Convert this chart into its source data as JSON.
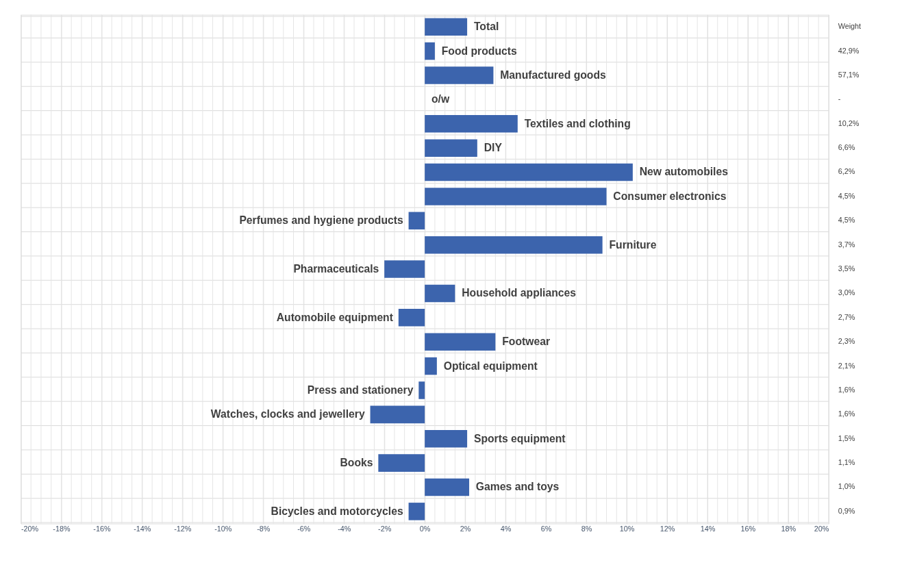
{
  "chart_data": {
    "type": "bar",
    "orientation": "horizontal",
    "color": "#3c64ad",
    "grid": true,
    "tick_labels": "x",
    "categories": [
      "Total",
      "Food products",
      "Manufactured  goods",
      "o/w",
      "Textiles and clothing",
      "DIY",
      "New automobiles",
      "Consumer electronics",
      "Perfumes and hygiene products",
      "Furniture",
      "Pharmaceuticals",
      "Household appliances",
      "Automobile equipment",
      "Footwear",
      "Optical equipment",
      "Press and stationery",
      "Watches, clocks and jewellery",
      "Sports equipment",
      "Books",
      "Games and toys",
      "Bicycles and motorcycles"
    ],
    "values": [
      2.1,
      0.5,
      3.4,
      null,
      4.6,
      2.6,
      10.3,
      9.0,
      -0.8,
      8.8,
      -2.0,
      1.5,
      -1.3,
      3.5,
      0.6,
      -0.3,
      -2.7,
      2.1,
      -2.3,
      2.2,
      -0.8
    ],
    "y2_categories": [
      "Weight",
      "42,9%",
      "57,1%",
      "-",
      "10,2%",
      "6,6%",
      "6,2%",
      "4,5%",
      "4,5%",
      "3,7%",
      "3,5%",
      "3,0%",
      "2,7%",
      "2,3%",
      "2,1%",
      "1,6%",
      "1,6%",
      "1,5%",
      "1,1%",
      "1,0%",
      "0,9%"
    ],
    "xlim": [
      -20,
      20
    ],
    "xticks": [
      {
        "value": -20,
        "label": "-20%"
      },
      {
        "value": -19.5,
        "label": null
      },
      {
        "value": -19,
        "label": null
      },
      {
        "value": -18.5,
        "label": null
      },
      {
        "value": -18,
        "label": "-18%"
      },
      {
        "value": -17.5,
        "label": null
      },
      {
        "value": -17,
        "label": null
      },
      {
        "value": -16.5,
        "label": null
      },
      {
        "value": -16,
        "label": "-16%"
      },
      {
        "value": -15.5,
        "label": null
      },
      {
        "value": -15,
        "label": null
      },
      {
        "value": -14.5,
        "label": null
      },
      {
        "value": -14,
        "label": "-14%"
      },
      {
        "value": -13.5,
        "label": null
      },
      {
        "value": -13,
        "label": null
      },
      {
        "value": -12.5,
        "label": null
      },
      {
        "value": -12,
        "label": "-12%"
      },
      {
        "value": -11.5,
        "label": null
      },
      {
        "value": -11,
        "label": null
      },
      {
        "value": -10.5,
        "label": null
      },
      {
        "value": -10,
        "label": "-10%"
      },
      {
        "value": -9.5,
        "label": null
      },
      {
        "value": -9,
        "label": null
      },
      {
        "value": -8.5,
        "label": null
      },
      {
        "value": -8,
        "label": "-8%"
      },
      {
        "value": -7.5,
        "label": null
      },
      {
        "value": -7,
        "label": null
      },
      {
        "value": -6.5,
        "label": null
      },
      {
        "value": -6,
        "label": "-6%"
      },
      {
        "value": -5.5,
        "label": null
      },
      {
        "value": -5,
        "label": null
      },
      {
        "value": -4.5,
        "label": null
      },
      {
        "value": -4,
        "label": "-4%"
      },
      {
        "value": -3.5,
        "label": null
      },
      {
        "value": -3,
        "label": null
      },
      {
        "value": -2.5,
        "label": null
      },
      {
        "value": -2,
        "label": "-2%"
      },
      {
        "value": -1.5,
        "label": null
      },
      {
        "value": -1,
        "label": null
      },
      {
        "value": -0.5,
        "label": null
      },
      {
        "value": 0,
        "label": "0%"
      },
      {
        "value": 0.5,
        "label": null
      },
      {
        "value": 1,
        "label": null
      },
      {
        "value": 1.5,
        "label": null
      },
      {
        "value": 2,
        "label": "2%"
      },
      {
        "value": 2.5,
        "label": null
      },
      {
        "value": 3,
        "label": null
      },
      {
        "value": 3.5,
        "label": null
      },
      {
        "value": 4,
        "label": "4%"
      },
      {
        "value": 4.5,
        "label": null
      },
      {
        "value": 5,
        "label": null
      },
      {
        "value": 5.5,
        "label": null
      },
      {
        "value": 6,
        "label": "6%"
      },
      {
        "value": 6.5,
        "label": null
      },
      {
        "value": 7,
        "label": null
      },
      {
        "value": 7.5,
        "label": null
      },
      {
        "value": 8,
        "label": "8%"
      },
      {
        "value": 8.5,
        "label": null
      },
      {
        "value": 9,
        "label": null
      },
      {
        "value": 9.5,
        "label": null
      },
      {
        "value": 10,
        "label": "10%"
      },
      {
        "value": 10.5,
        "label": null
      },
      {
        "value": 11,
        "label": null
      },
      {
        "value": 11.5,
        "label": null
      },
      {
        "value": 12,
        "label": "12%"
      },
      {
        "value": 12.5,
        "label": null
      },
      {
        "value": 13,
        "label": null
      },
      {
        "value": 13.5,
        "label": null
      },
      {
        "value": 14,
        "label": "14%"
      },
      {
        "value": 14.5,
        "label": null
      },
      {
        "value": 15,
        "label": null
      },
      {
        "value": 15.5,
        "label": null
      },
      {
        "value": 16,
        "label": "16%"
      },
      {
        "value": 16.5,
        "label": null
      },
      {
        "value": 17,
        "label": null
      },
      {
        "value": 17.5,
        "label": null
      },
      {
        "value": 18,
        "label": "18%"
      },
      {
        "value": 18.5,
        "label": null
      },
      {
        "value": 19,
        "label": null
      },
      {
        "value": 19.5,
        "label": null
      },
      {
        "value": 20,
        "label": "20%"
      }
    ]
  }
}
